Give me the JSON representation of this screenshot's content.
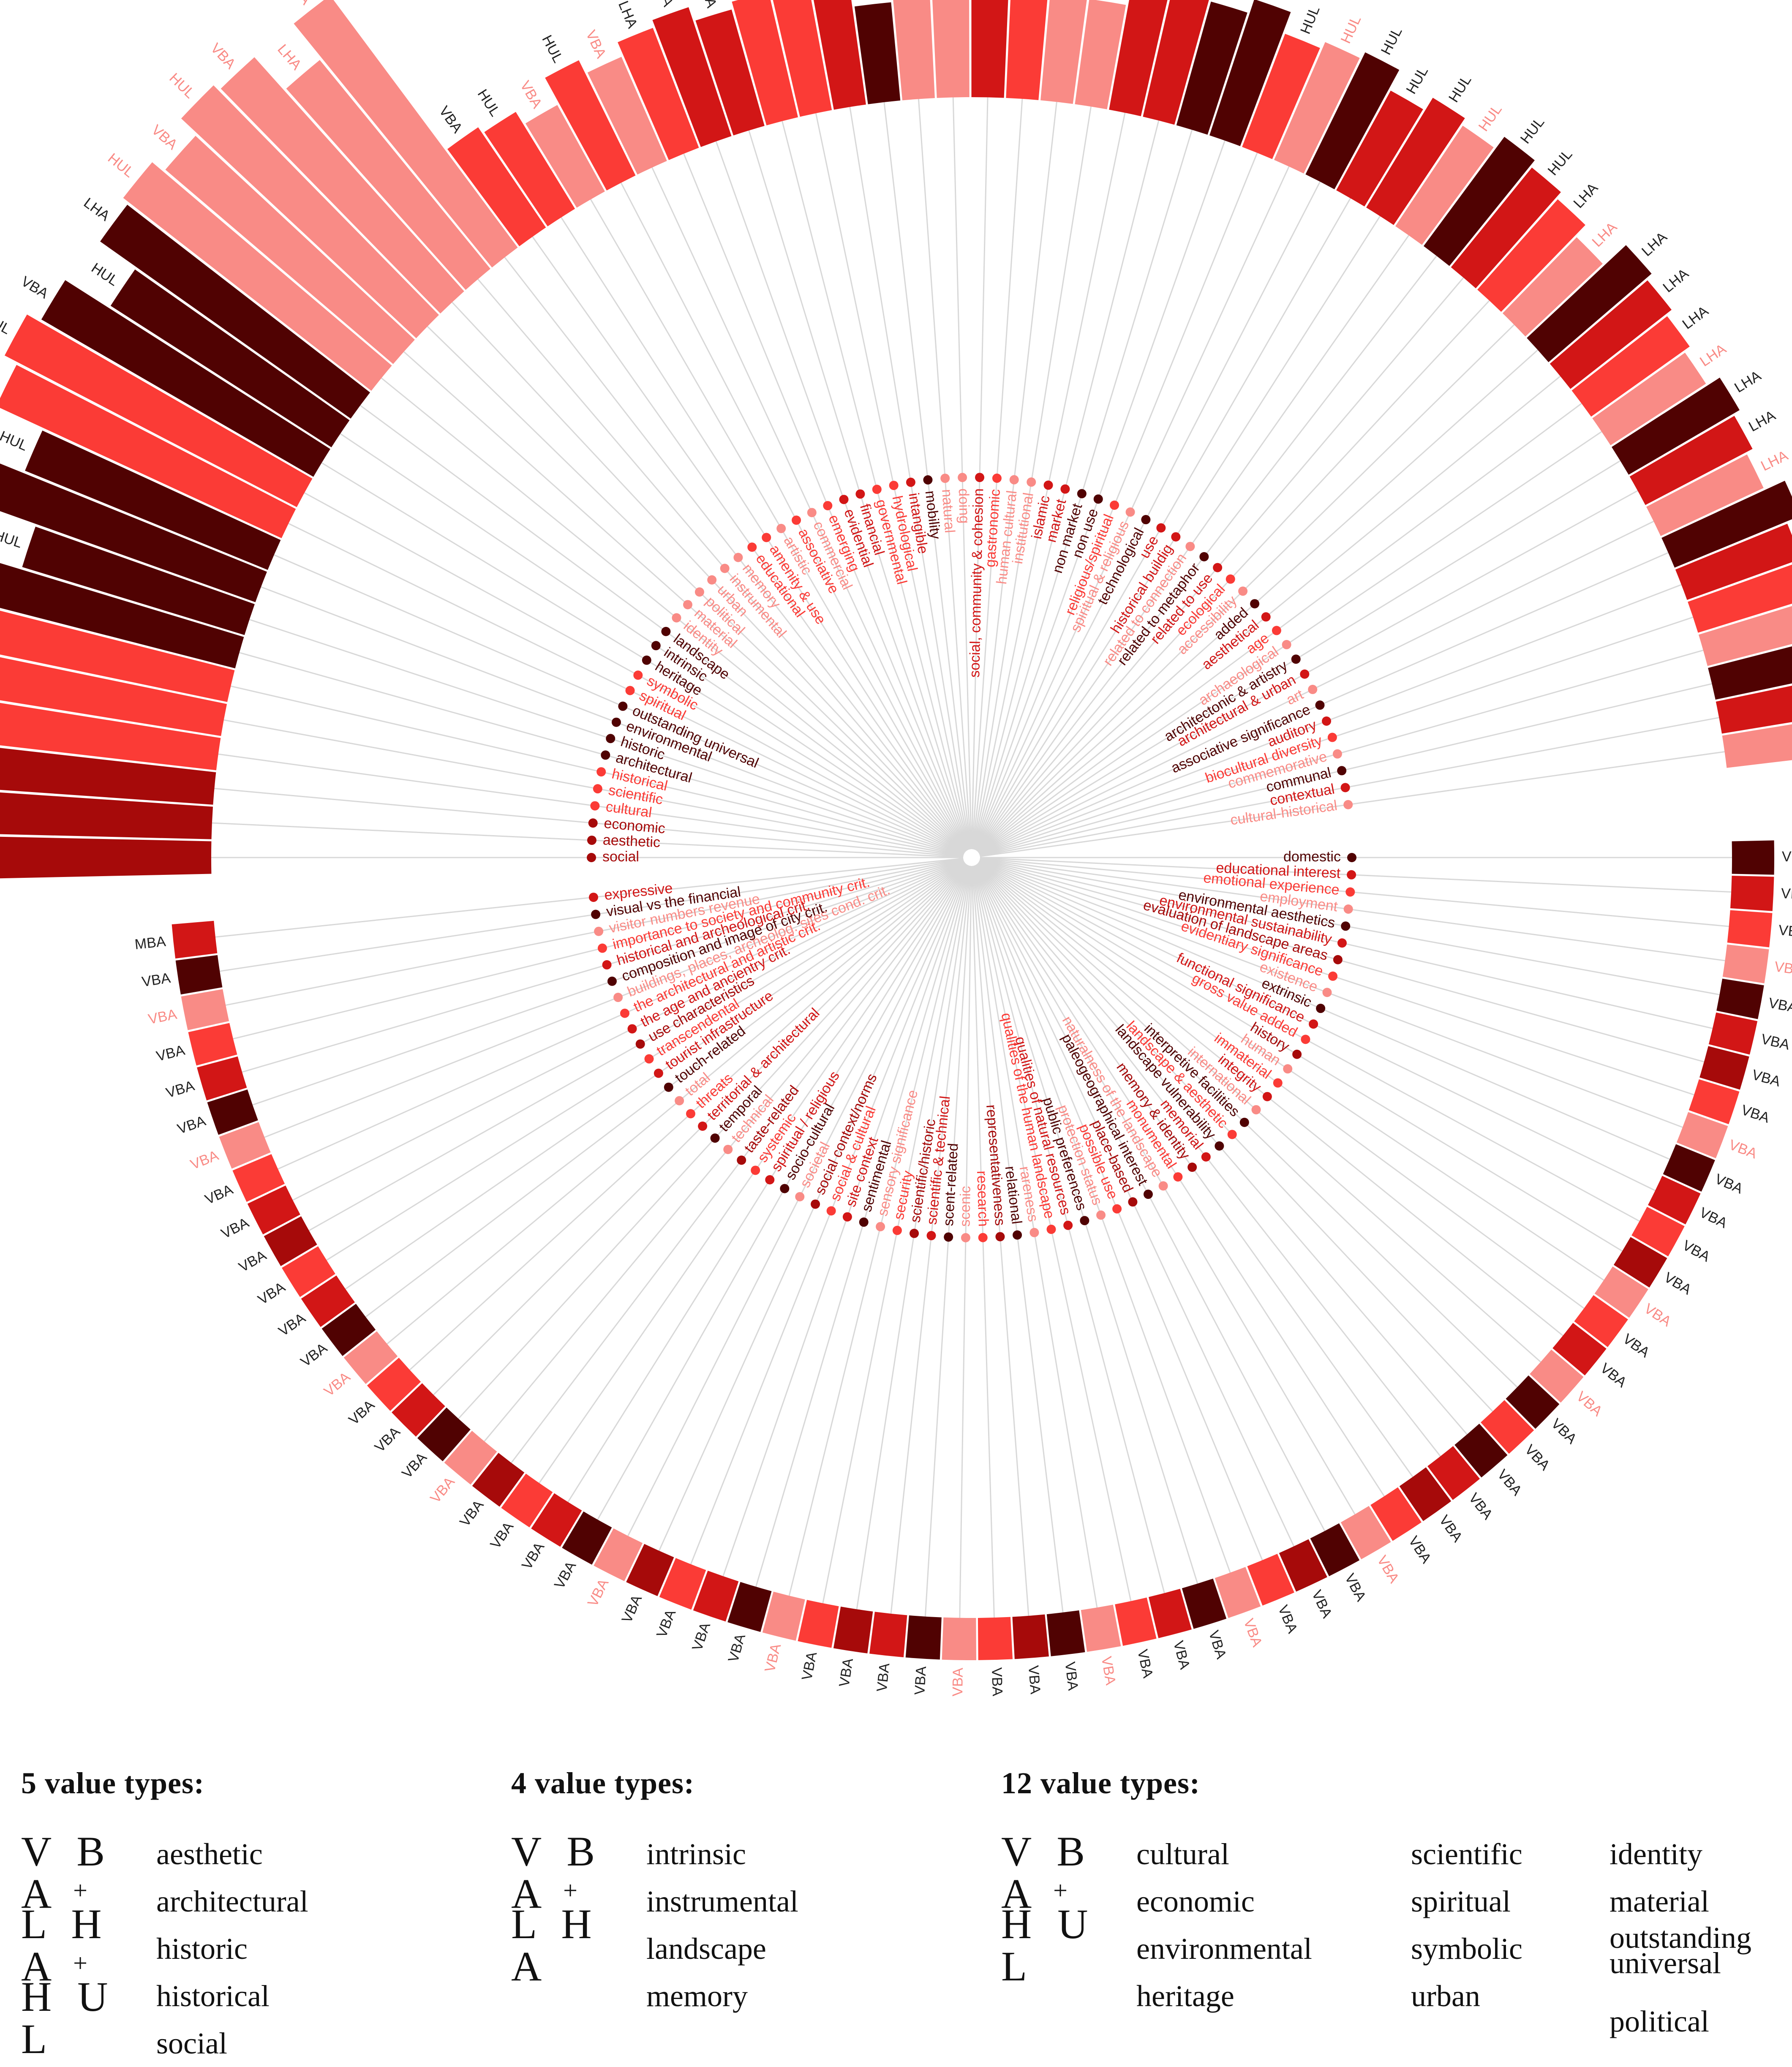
{
  "chart_data": {
    "type": "radial-bar",
    "description_colors": {
      "c1": "#f98b86",
      "c2": "#fb3b36",
      "c3": "#d21616",
      "c4": "#a60a0a",
      "c5": "#500202"
    },
    "upper": [
      {
        "term": "social",
        "code": "HUL",
        "value": 100,
        "color": "c4"
      },
      {
        "term": "aesthetic",
        "code": "VBA",
        "value": 84,
        "color": "c4"
      },
      {
        "term": "economic",
        "code": "LHA",
        "value": 80,
        "color": "c4"
      },
      {
        "term": "cultural",
        "code": "VBA",
        "value": 94,
        "color": "c2"
      },
      {
        "term": "scientific",
        "code": "LHA",
        "value": 82,
        "color": "c2"
      },
      {
        "term": "historical",
        "code": "HUL",
        "value": 62,
        "color": "c2"
      },
      {
        "term": "architectural",
        "code": "VBA",
        "value": 100,
        "color": "c5"
      },
      {
        "term": "historic",
        "code": "HUL",
        "value": 58,
        "color": "c5"
      },
      {
        "term": "environmental",
        "code": "VBA",
        "value": 85,
        "color": "c5"
      },
      {
        "term": "outstanding universal",
        "code": "HUL",
        "value": 66,
        "color": "c5"
      },
      {
        "term": "spiritual",
        "code": "VBA",
        "value": 80,
        "color": "c2"
      },
      {
        "term": "symbolic",
        "code": "HUL",
        "value": 84,
        "color": "c2"
      },
      {
        "term": "heritage",
        "code": "VBA",
        "value": 80,
        "color": "c5"
      },
      {
        "term": "intrinsic",
        "code": "HUL",
        "value": 66,
        "color": "c5"
      },
      {
        "term": "landscape",
        "code": "LHA",
        "value": 78,
        "color": "c5"
      },
      {
        "term": "identity",
        "code": "HUL",
        "value": 80,
        "color": "c1"
      },
      {
        "term": "material",
        "code": "VBA",
        "value": 76,
        "color": "c1"
      },
      {
        "term": "political",
        "code": "HUL",
        "value": 82,
        "color": "c1"
      },
      {
        "term": "urban",
        "code": "VBA",
        "value": 80,
        "color": "c1"
      },
      {
        "term": "instrumental",
        "code": "LHA",
        "value": 68,
        "color": "c1"
      },
      {
        "term": "memory",
        "code": "VBA",
        "value": 80,
        "color": "c1"
      },
      {
        "term": "educational",
        "code": "VBA",
        "value": 28,
        "color": "c2"
      },
      {
        "term": "amenity & use",
        "code": "HUL",
        "value": 26,
        "color": "c2"
      },
      {
        "term": "artistic",
        "code": "VBA",
        "value": 22,
        "color": "c1"
      },
      {
        "term": "associative",
        "code": "HUL",
        "value": 30,
        "color": "c2"
      },
      {
        "term": "commercial",
        "code": "VBA",
        "value": 26,
        "color": "c1"
      },
      {
        "term": "emerging",
        "code": "LHA",
        "value": 30,
        "color": "c2"
      },
      {
        "term": "evidential",
        "code": "VBA",
        "value": 32,
        "color": "c3"
      },
      {
        "term": "financial",
        "code": "LHA",
        "value": 28,
        "color": "c3"
      },
      {
        "term": "governmental",
        "code": "VBA",
        "value": 30,
        "color": "c2"
      },
      {
        "term": "hydrological",
        "code": "VBA",
        "value": 28,
        "color": "c2"
      },
      {
        "term": "intangible",
        "code": "HUL",
        "value": 34,
        "color": "c3"
      },
      {
        "term": "mobility",
        "code": "VBA",
        "value": 22,
        "color": "c5"
      },
      {
        "term": "natural",
        "code": "VBA",
        "value": 34,
        "color": "c1"
      },
      {
        "term": "doing",
        "code": "LHA",
        "value": 26,
        "color": "c1"
      },
      {
        "term": "social, community & cohesion",
        "code": "VBA",
        "value": 32,
        "color": "c3"
      },
      {
        "term": "gastronomic",
        "code": "HUL",
        "value": 26,
        "color": "c2"
      },
      {
        "term": "human cultural",
        "code": "VBA",
        "value": 28,
        "color": "c1"
      },
      {
        "term": "institutional",
        "code": "LHA",
        "value": 24,
        "color": "c1"
      },
      {
        "term": "islamic",
        "code": "HUL",
        "value": 32,
        "color": "c3"
      },
      {
        "term": "market",
        "code": "HUL",
        "value": 36,
        "color": "c3"
      },
      {
        "term": "non market",
        "code": "VBA",
        "value": 30,
        "color": "c5"
      },
      {
        "term": "non use",
        "code": "HUL",
        "value": 34,
        "color": "c5"
      },
      {
        "term": "religious/spiritual",
        "code": "HUL",
        "value": 28,
        "color": "c2"
      },
      {
        "term": "spiritual & religious",
        "code": "HUL",
        "value": 30,
        "color": "c1"
      },
      {
        "term": "technological",
        "code": "HUL",
        "value": 32,
        "color": "c5"
      },
      {
        "term": "use",
        "code": "HUL",
        "value": 26,
        "color": "c3"
      },
      {
        "term": "historical buildig",
        "code": "HUL",
        "value": 30,
        "color": "c3"
      },
      {
        "term": "related to connection",
        "code": "HUL",
        "value": 28,
        "color": "c1"
      },
      {
        "term": "related to metaphor",
        "code": "HUL",
        "value": 32,
        "color": "c5"
      },
      {
        "term": "related to use",
        "code": "HUL",
        "value": 30,
        "color": "c3"
      },
      {
        "term": "ecological",
        "code": "LHA",
        "value": 28,
        "color": "c2"
      },
      {
        "term": "accessibility",
        "code": "LHA",
        "value": 24,
        "color": "c1"
      },
      {
        "term": "added",
        "code": "LHA",
        "value": 32,
        "color": "c5"
      },
      {
        "term": "aesthetical",
        "code": "LHA",
        "value": 30,
        "color": "c3"
      },
      {
        "term": "age",
        "code": "LHA",
        "value": 28,
        "color": "c2"
      },
      {
        "term": "archaeological",
        "code": "LHA",
        "value": 26,
        "color": "c1"
      },
      {
        "term": "architectonic & artistry",
        "code": "LHA",
        "value": 30,
        "color": "c5"
      },
      {
        "term": "architectural & urban",
        "code": "LHA",
        "value": 28,
        "color": "c3"
      },
      {
        "term": "art",
        "code": "LHA",
        "value": 26,
        "color": "c1"
      },
      {
        "term": "associative significance",
        "code": "LHA",
        "value": 32,
        "color": "c5"
      },
      {
        "term": "auditory",
        "code": "LHA",
        "value": 28,
        "color": "c3"
      },
      {
        "term": "biocultural diversity",
        "code": "LHA",
        "value": 26,
        "color": "c2"
      },
      {
        "term": "commemorative",
        "code": "LHA",
        "value": 24,
        "color": "c1"
      },
      {
        "term": "communal",
        "code": "LHA",
        "value": 30,
        "color": "c5"
      },
      {
        "term": "contextual",
        "code": "LHA",
        "value": 28,
        "color": "c3"
      },
      {
        "term": "cultural-historical",
        "code": "VBA",
        "value": 26,
        "color": "c1"
      }
    ],
    "lower": [
      {
        "term": "domestic",
        "code": "VBA",
        "color": "c5"
      },
      {
        "term": "educational interest",
        "code": "VBA",
        "color": "c3"
      },
      {
        "term": "emotional experience",
        "code": "VBA",
        "color": "c2"
      },
      {
        "term": "employment",
        "code": "VBA",
        "color": "c1"
      },
      {
        "term": "environmental aesthetics",
        "code": "VBA",
        "color": "c5"
      },
      {
        "term": "environmental sustainability",
        "code": "VBA",
        "color": "c3"
      },
      {
        "term": "evaluation of landscape areas",
        "code": "VBA",
        "color": "c4"
      },
      {
        "term": "evidentiary significance",
        "code": "VBA",
        "color": "c2"
      },
      {
        "term": "existence",
        "code": "VBA",
        "color": "c1"
      },
      {
        "term": "extrinsic",
        "code": "VBA",
        "color": "c5"
      },
      {
        "term": "functional significance",
        "code": "VBA",
        "color": "c3"
      },
      {
        "term": "gross value added",
        "code": "VBA",
        "color": "c2"
      },
      {
        "term": "history",
        "code": "VBA",
        "color": "c4"
      },
      {
        "term": "human",
        "code": "VBA",
        "color": "c1"
      },
      {
        "term": "immaterial",
        "code": "VBA",
        "color": "c2"
      },
      {
        "term": "integrity",
        "code": "VBA",
        "color": "c3"
      },
      {
        "term": "international",
        "code": "VBA",
        "color": "c1"
      },
      {
        "term": "interpretive facilities",
        "code": "VBA",
        "color": "c5"
      },
      {
        "term": "landscape & aesthetic",
        "code": "VBA",
        "color": "c2"
      },
      {
        "term": "landscape vulnerability",
        "code": "VBA",
        "color": "c5"
      },
      {
        "term": "memorial",
        "code": "VBA",
        "color": "c3"
      },
      {
        "term": "memory & identity",
        "code": "VBA",
        "color": "c4"
      },
      {
        "term": "monumental",
        "code": "VBA",
        "color": "c2"
      },
      {
        "term": "naturalness of the landscape",
        "code": "VBA",
        "color": "c1"
      },
      {
        "term": "paleogeographical interest",
        "code": "VBA",
        "color": "c5"
      },
      {
        "term": "place-based",
        "code": "VBA",
        "color": "c4"
      },
      {
        "term": "possible use",
        "code": "VBA",
        "color": "c2"
      },
      {
        "term": "protection status",
        "code": "VBA",
        "color": "c1"
      },
      {
        "term": "public preferences",
        "code": "VBA",
        "color": "c5"
      },
      {
        "term": "qualities of natural resources",
        "code": "VBA",
        "color": "c3"
      },
      {
        "term": "qualities of the human landscape",
        "code": "VBA",
        "color": "c2"
      },
      {
        "term": "rareness",
        "code": "VBA",
        "color": "c1"
      },
      {
        "term": "relational",
        "code": "VBA",
        "color": "c5"
      },
      {
        "term": "representativeness",
        "code": "VBA",
        "color": "c4"
      },
      {
        "term": "research",
        "code": "VBA",
        "color": "c2"
      },
      {
        "term": "scenic",
        "code": "VBA",
        "color": "c1"
      },
      {
        "term": "scent-related",
        "code": "VBA",
        "color": "c5"
      },
      {
        "term": "scientific & technical",
        "code": "VBA",
        "color": "c3"
      },
      {
        "term": "scientific/historic",
        "code": "VBA",
        "color": "c4"
      },
      {
        "term": "security",
        "code": "VBA",
        "color": "c2"
      },
      {
        "term": "sensory significance",
        "code": "VBA",
        "color": "c1"
      },
      {
        "term": "sentimental",
        "code": "VBA",
        "color": "c5"
      },
      {
        "term": "site context",
        "code": "VBA",
        "color": "c3"
      },
      {
        "term": "social & cultural",
        "code": "VBA",
        "color": "c2"
      },
      {
        "term": "social context/norms",
        "code": "VBA",
        "color": "c4"
      },
      {
        "term": "societal",
        "code": "VBA",
        "color": "c1"
      },
      {
        "term": "socio-cultural",
        "code": "VBA",
        "color": "c5"
      },
      {
        "term": "spiritual / religious",
        "code": "VBA",
        "color": "c3"
      },
      {
        "term": "systemic",
        "code": "VBA",
        "color": "c2"
      },
      {
        "term": "taste-related",
        "code": "VBA",
        "color": "c4"
      },
      {
        "term": "technical",
        "code": "VBA",
        "color": "c1"
      },
      {
        "term": "temporal",
        "code": "VBA",
        "color": "c5"
      },
      {
        "term": "territorial & architectural",
        "code": "VBA",
        "color": "c3"
      },
      {
        "term": "threats",
        "code": "VBA",
        "color": "c2"
      },
      {
        "term": "total",
        "code": "VBA",
        "color": "c1"
      },
      {
        "term": "touch-related",
        "code": "VBA",
        "color": "c5"
      },
      {
        "term": "tourist infrastructure",
        "code": "VBA",
        "color": "c3"
      },
      {
        "term": "transcendental",
        "code": "VBA",
        "color": "c2"
      },
      {
        "term": "use characteristics",
        "code": "VBA",
        "color": "c4"
      },
      {
        "term": "the age and ancientry crit.",
        "code": "VBA",
        "color": "c3"
      },
      {
        "term": "the architectural and artistic crit.",
        "code": "VBA",
        "color": "c2"
      },
      {
        "term": "buildings, places, archeolog. sites cond. crit.",
        "code": "VBA",
        "color": "c1"
      },
      {
        "term": "composition and image of city crit.",
        "code": "VBA",
        "color": "c5"
      },
      {
        "term": "historical and archeological crit.",
        "code": "VBA",
        "color": "c3"
      },
      {
        "term": "importance to society and community crit.",
        "code": "VBA",
        "color": "c2"
      },
      {
        "term": "visitor numbers revenue",
        "code": "VBA",
        "color": "c1"
      },
      {
        "term": "visual vs the financial",
        "code": "VBA",
        "color": "c5"
      },
      {
        "term": "expressive",
        "code": "MBA",
        "color": "c3"
      }
    ]
  },
  "legend": {
    "five": {
      "title": "5 value types:",
      "codes": [
        "V B A",
        "L H A",
        "H U L"
      ],
      "plus": "+",
      "values": [
        "aesthetic",
        "architectural",
        "historic",
        "historical",
        "social"
      ]
    },
    "four": {
      "title": "4 value types:",
      "codes": [
        "V B A",
        "L H A"
      ],
      "plus": "+",
      "values": [
        "intrinsic",
        "instrumental",
        "landscape",
        "memory"
      ]
    },
    "twelve": {
      "title": "12 value types:",
      "codes": [
        "V B A",
        "H U L"
      ],
      "plus": "+",
      "col1": [
        "cultural",
        "economic",
        "environmental",
        "heritage"
      ],
      "col2": [
        "scientific",
        "spiritual",
        "symbolic",
        "urban"
      ],
      "col3": [
        "identity",
        "material",
        "outstanding universal",
        "political"
      ]
    }
  }
}
